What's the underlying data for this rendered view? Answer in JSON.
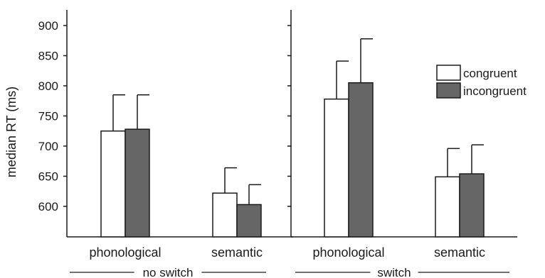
{
  "chart_data": {
    "type": "bar",
    "ylabel": "median RT (ms)",
    "ylim": [
      550,
      920
    ],
    "yticks": [
      600,
      650,
      700,
      750,
      800,
      850,
      900
    ],
    "legend_position": "top-right",
    "series": [
      {
        "name": "congruent",
        "color": "#ffffff"
      },
      {
        "name": "incongruent",
        "color": "#666666"
      }
    ],
    "panels": [
      {
        "group_label": "no switch",
        "categories": [
          "phonological",
          "semantic"
        ],
        "values": {
          "congruent": [
            725,
            622
          ],
          "incongruent": [
            728,
            603
          ]
        },
        "errors": {
          "congruent": [
            60,
            42
          ],
          "incongruent": [
            57,
            33
          ]
        }
      },
      {
        "group_label": "switch",
        "categories": [
          "phonological",
          "semantic"
        ],
        "values": {
          "congruent": [
            778,
            649
          ],
          "incongruent": [
            805,
            654
          ]
        },
        "errors": {
          "congruent": [
            63,
            47
          ],
          "incongruent": [
            73,
            48
          ]
        }
      }
    ]
  }
}
